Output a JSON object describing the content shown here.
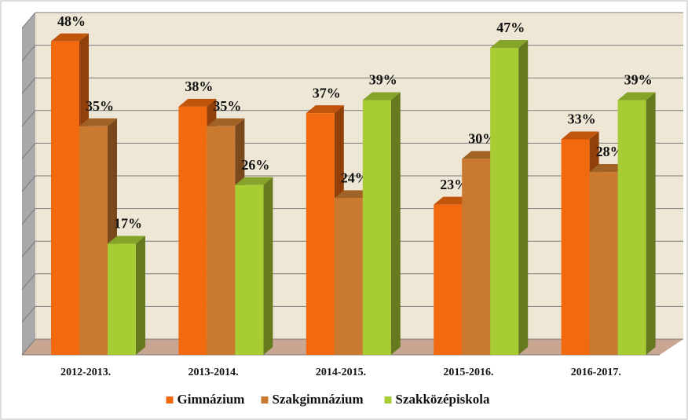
{
  "chart_data": {
    "type": "bar3d",
    "categories": [
      "2012-2013.",
      "2013-2014.",
      "2014-2015.",
      "2015-2016.",
      "2016-2017."
    ],
    "series": [
      {
        "name": "Gimnázium",
        "color": "#f26a10",
        "values": [
          48,
          38,
          37,
          23,
          33
        ],
        "value_labels": [
          "48%",
          "38%",
          "37%",
          "23%",
          "33%"
        ]
      },
      {
        "name": "Szakgimnázium",
        "color": "#c97a30",
        "values": [
          35,
          35,
          24,
          30,
          28
        ],
        "value_labels": [
          "35%",
          "35%",
          "24%",
          "30%",
          "28%"
        ]
      },
      {
        "name": "Szakközépiskola",
        "color": "#a8cc34",
        "values": [
          17,
          26,
          39,
          47,
          39
        ],
        "value_labels": [
          "17%",
          "26%",
          "39%",
          "47%",
          "39%"
        ]
      }
    ],
    "ylim": [
      0,
      50
    ],
    "yticks": [
      0,
      5,
      10,
      15,
      20,
      25,
      30,
      35,
      40,
      45,
      50
    ],
    "grid": true,
    "legend": "bottom"
  }
}
